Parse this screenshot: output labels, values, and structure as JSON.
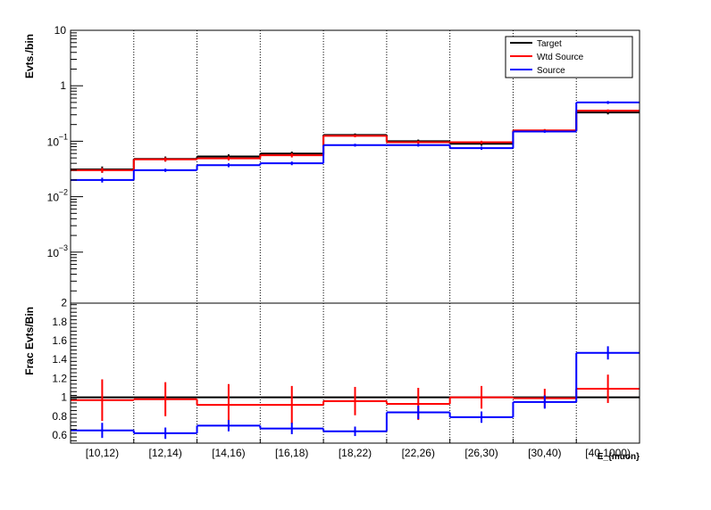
{
  "colors": {
    "target": "#000000",
    "wtd_source": "#ff0000",
    "source": "#0000ff",
    "background": "#ffffff",
    "frame": "#000000"
  },
  "top": {
    "ylabel": "Evts./bin",
    "ytick_labels": [
      {
        "value": 10,
        "text": "10"
      },
      {
        "value": 1,
        "text": "1"
      },
      {
        "value": 0.1,
        "mant": "10",
        "exp": "−1"
      },
      {
        "value": 0.01,
        "mant": "10",
        "exp": "−2"
      },
      {
        "value": 0.001,
        "mant": "10",
        "exp": "−3"
      }
    ]
  },
  "bottom": {
    "ylabel": "Frac Evts/Bin",
    "ytick_labels": [
      "2",
      "1.8",
      "1.6",
      "1.4",
      "1.2",
      "1",
      "0.8",
      "0.6"
    ],
    "xlabel": "E_{muon}"
  },
  "legend": {
    "position": "top-right",
    "items": [
      {
        "key": "target",
        "label": "Target"
      },
      {
        "key": "wtd_source",
        "label": "Wtd Source"
      },
      {
        "key": "source",
        "label": "Source"
      }
    ]
  },
  "chart_data": [
    {
      "type": "line",
      "step": true,
      "yscale": "log",
      "ylim": [
        0.0002,
        10
      ],
      "grid": "vertical dotted",
      "legend_position": "top-right",
      "categories": [
        "[10,12)",
        "[12,14)",
        "[14,16)",
        "[16,18)",
        "[18,22)",
        "[22,26)",
        "[26,30)",
        "[30,40)",
        "[40,1000)"
      ],
      "ylabel": "Evts./bin",
      "series": [
        {
          "name": "Target",
          "key": "target",
          "values": [
            0.031,
            0.048,
            0.053,
            0.06,
            0.13,
            0.1,
            0.09,
            0.155,
            0.33
          ],
          "errors": [
            0.004,
            0.005,
            0.005,
            0.005,
            0.008,
            0.007,
            0.007,
            0.01,
            0.025
          ]
        },
        {
          "name": "Wtd Source",
          "key": "wtd_source",
          "values": [
            0.03,
            0.047,
            0.049,
            0.056,
            0.125,
            0.096,
            0.096,
            0.157,
            0.355
          ],
          "errors": [
            0.003,
            0.004,
            0.004,
            0.005,
            0.007,
            0.006,
            0.006,
            0.008,
            0.02
          ]
        },
        {
          "name": "Source",
          "key": "source",
          "values": [
            0.02,
            0.03,
            0.037,
            0.04,
            0.085,
            0.085,
            0.075,
            0.15,
            0.5
          ],
          "errors": [
            0.002,
            0.002,
            0.003,
            0.003,
            0.005,
            0.005,
            0.005,
            0.008,
            0.03
          ]
        }
      ]
    },
    {
      "type": "line",
      "step": true,
      "yscale": "linear",
      "ylim": [
        0.5,
        2
      ],
      "grid": "vertical dotted",
      "categories": [
        "[10,12)",
        "[12,14)",
        "[14,16)",
        "[16,18)",
        "[18,22)",
        "[22,26)",
        "[26,30)",
        "[30,40)",
        "[40,1000)"
      ],
      "ylabel": "Frac Evts/Bin",
      "xlabel": "E_{muon}",
      "series": [
        {
          "name": "Target",
          "key": "target",
          "values": [
            1,
            1,
            1,
            1,
            1,
            1,
            1,
            1,
            1
          ],
          "errors": [
            0,
            0,
            0,
            0,
            0,
            0,
            0,
            0,
            0
          ]
        },
        {
          "name": "Wtd Source",
          "key": "wtd_source",
          "values": [
            0.97,
            0.98,
            0.92,
            0.92,
            0.96,
            0.93,
            1.0,
            0.99,
            1.09
          ],
          "errors": [
            0.22,
            0.18,
            0.22,
            0.2,
            0.15,
            0.17,
            0.12,
            0.1,
            0.15
          ]
        },
        {
          "name": "Source",
          "key": "source",
          "values": [
            0.65,
            0.62,
            0.7,
            0.67,
            0.64,
            0.84,
            0.79,
            0.95,
            1.47
          ],
          "errors": [
            0.08,
            0.06,
            0.06,
            0.06,
            0.05,
            0.07,
            0.06,
            0.07,
            0.07
          ]
        }
      ]
    }
  ]
}
